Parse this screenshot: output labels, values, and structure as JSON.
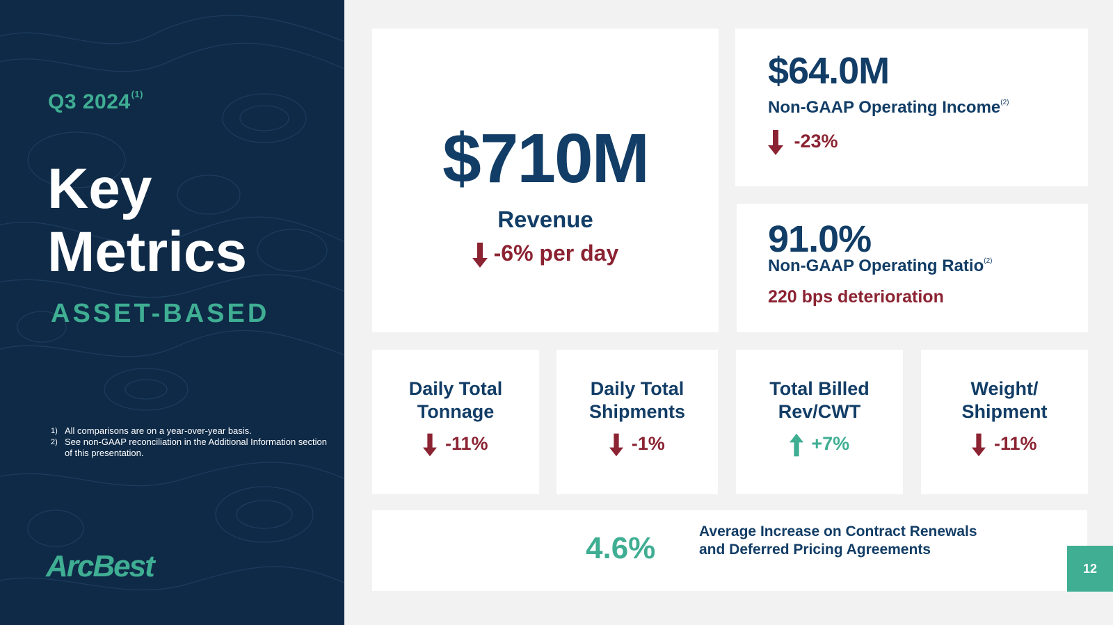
{
  "sidebar": {
    "period": "Q3 2024",
    "period_note": "(1)",
    "title_line1": "Key",
    "title_line2": "Metrics",
    "segment": "ASSET-BASED",
    "footnotes": [
      {
        "num": "1)",
        "text": "All comparisons are on a year-over-year basis."
      },
      {
        "num": "2)",
        "text": "See non-GAAP reconciliation in the Additional Information section of this presentation."
      }
    ],
    "logo": "ArcBest"
  },
  "revenue": {
    "value": "$710M",
    "label": "Revenue",
    "change": "-6% per day",
    "direction": "down"
  },
  "operating_income": {
    "value": "$64.0M",
    "label": "Non-GAAP Operating Income",
    "note": "(2)",
    "change": "-23%",
    "direction": "down"
  },
  "operating_ratio": {
    "value": "91.0%",
    "label": "Non-GAAP Operating Ratio",
    "note": "(2)",
    "change": "220 bps deterioration"
  },
  "small_metrics": [
    {
      "title_line1": "Daily Total",
      "title_line2": "Tonnage",
      "change": "-11%",
      "direction": "down"
    },
    {
      "title_line1": "Daily Total",
      "title_line2": "Shipments",
      "change": "-1%",
      "direction": "down"
    },
    {
      "title_line1": "Total Billed",
      "title_line2": "Rev/CWT",
      "change": "+7%",
      "direction": "up"
    },
    {
      "title_line1": "Weight/",
      "title_line2": "Shipment",
      "change": "-11%",
      "direction": "down"
    }
  ],
  "pricing": {
    "value": "4.6%",
    "label_line1": "Average Increase on Contract Renewals",
    "label_line2": "and Deferred Pricing Agreements"
  },
  "page_number": "12",
  "colors": {
    "navy": "#123d66",
    "panel": "#0e2a47",
    "green": "#3fae93",
    "red": "#8b2332"
  }
}
